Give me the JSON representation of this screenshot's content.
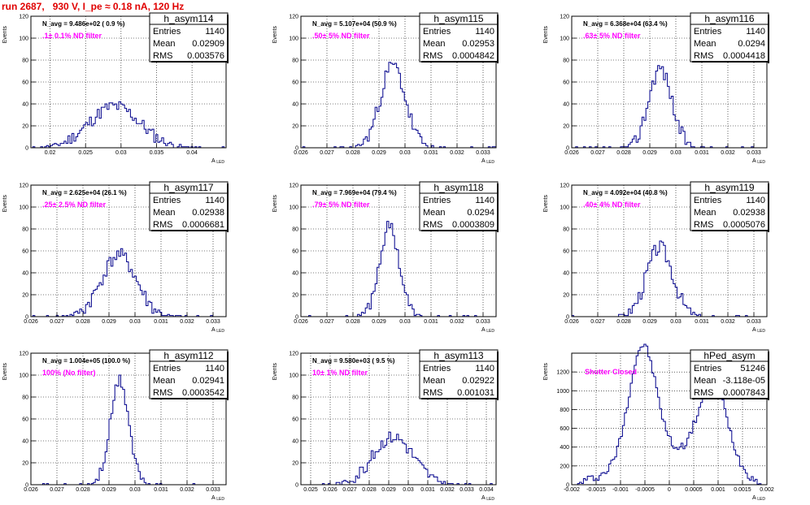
{
  "page_title": "run 2687,   930 V, I_pe ≈ 0.18 nA, 120 Hz",
  "axis_label_x": "A_LED",
  "axis_label_y": "Events",
  "stats_labels": {
    "entries": "Entries",
    "mean": "Mean",
    "rms": "RMS"
  },
  "colors": {
    "title": "#e00000",
    "histogram": "#00008b",
    "annotation": "#ff00ff"
  },
  "chart_data": [
    {
      "type": "histogram",
      "name": "h_asym114",
      "navg": "N_avg = 9.486e+02 ( 0.9 %)",
      "filter": ".1± 0.1% ND filter",
      "stats": {
        "entries": "1140",
        "mean": "0.02909",
        "rms": "0.003576"
      },
      "xlim": [
        0.0173,
        0.0448
      ],
      "ylim": [
        0,
        120
      ],
      "xticks": [
        0.02,
        0.025,
        0.03,
        0.035,
        0.04
      ],
      "xticklabels": [
        "0.02",
        "0.025",
        "0.03",
        "0.035",
        "0.04"
      ],
      "yticks": [
        0,
        20,
        40,
        60,
        80,
        100,
        120
      ],
      "yticklabels": [
        "0",
        "20",
        "40",
        "60",
        "80",
        "100",
        "120"
      ],
      "mean": 0.02909,
      "sigma": 0.003576,
      "peak": 38,
      "noise": 6,
      "bins": 100,
      "seed": 11
    },
    {
      "type": "histogram",
      "name": "h_asym115",
      "navg": "N_avg = 5.107e+04 (50.9 %)",
      "filter": ".50± 5% ND filter",
      "stats": {
        "entries": "1140",
        "mean": "0.02953",
        "rms": "0.0004842"
      },
      "xlim": [
        0.026,
        0.0335
      ],
      "ylim": [
        0,
        120
      ],
      "xticks": [
        0.026,
        0.027,
        0.028,
        0.029,
        0.03,
        0.031,
        0.032,
        0.033
      ],
      "xticklabels": [
        "0.026",
        "0.027",
        "0.028",
        "0.029",
        "0.03",
        "0.031",
        "0.032",
        "0.033"
      ],
      "yticks": [
        0,
        20,
        40,
        60,
        80,
        100,
        120
      ],
      "yticklabels": [
        "0",
        "20",
        "40",
        "60",
        "80",
        "100",
        "120"
      ],
      "mean": 0.02953,
      "sigma": 0.000484,
      "peak": 75,
      "noise": 7,
      "bins": 100,
      "seed": 23
    },
    {
      "type": "histogram",
      "name": "h_asym116",
      "navg": "N_avg = 6.368e+04 (63.4 %)",
      "filter": ".63± 5% ND filter",
      "stats": {
        "entries": "1140",
        "mean": "0.0294",
        "rms": "0.0004418"
      },
      "xlim": [
        0.026,
        0.0335
      ],
      "ylim": [
        0,
        120
      ],
      "xticks": [
        0.026,
        0.027,
        0.028,
        0.029,
        0.03,
        0.031,
        0.032,
        0.033
      ],
      "xticklabels": [
        "0.026",
        "0.027",
        "0.028",
        "0.029",
        "0.03",
        "0.031",
        "0.032",
        "0.033"
      ],
      "yticks": [
        0,
        20,
        40,
        60,
        80,
        100,
        120
      ],
      "yticklabels": [
        "0",
        "20",
        "40",
        "60",
        "80",
        "100",
        "120"
      ],
      "mean": 0.0294,
      "sigma": 0.000442,
      "peak": 73,
      "noise": 7,
      "bins": 100,
      "seed": 37
    },
    {
      "type": "histogram",
      "name": "h_asym117",
      "navg": "N_avg = 2.625e+04 (26.1 %)",
      "filter": ".25± 2.5% ND filter",
      "stats": {
        "entries": "1140",
        "mean": "0.02938",
        "rms": "0.0006681"
      },
      "xlim": [
        0.026,
        0.0335
      ],
      "ylim": [
        0,
        120
      ],
      "xticks": [
        0.026,
        0.027,
        0.028,
        0.029,
        0.03,
        0.031,
        0.032,
        0.033
      ],
      "xticklabels": [
        "0.026",
        "0.027",
        "0.028",
        "0.029",
        "0.03",
        "0.031",
        "0.032",
        "0.033"
      ],
      "yticks": [
        0,
        20,
        40,
        60,
        80,
        100,
        120
      ],
      "yticklabels": [
        "0",
        "20",
        "40",
        "60",
        "80",
        "100",
        "120"
      ],
      "mean": 0.02938,
      "sigma": 0.000668,
      "peak": 56,
      "noise": 7,
      "bins": 100,
      "seed": 41
    },
    {
      "type": "histogram",
      "name": "h_asym118",
      "navg": "N_avg = 7.969e+04 (79.4 %)",
      "filter": ".79± 5% ND filter",
      "stats": {
        "entries": "1140",
        "mean": "0.0294",
        "rms": "0.0003809"
      },
      "xlim": [
        0.026,
        0.0335
      ],
      "ylim": [
        0,
        120
      ],
      "xticks": [
        0.026,
        0.027,
        0.028,
        0.029,
        0.03,
        0.031,
        0.032,
        0.033
      ],
      "xticklabels": [
        "0.026",
        "0.027",
        "0.028",
        "0.029",
        "0.03",
        "0.031",
        "0.032",
        "0.033"
      ],
      "yticks": [
        0,
        20,
        40,
        60,
        80,
        100,
        120
      ],
      "yticklabels": [
        "0",
        "20",
        "40",
        "60",
        "80",
        "100",
        "120"
      ],
      "mean": 0.0294,
      "sigma": 0.000381,
      "peak": 82,
      "noise": 6,
      "bins": 100,
      "seed": 53
    },
    {
      "type": "histogram",
      "name": "h_asym119",
      "navg": "N_avg = 4.092e+04 (40.8 %)",
      "filter": ".40± 4% ND filter",
      "stats": {
        "entries": "1140",
        "mean": "0.02938",
        "rms": "0.0005076"
      },
      "xlim": [
        0.026,
        0.0335
      ],
      "ylim": [
        0,
        120
      ],
      "xticks": [
        0.026,
        0.027,
        0.028,
        0.029,
        0.03,
        0.031,
        0.032,
        0.033
      ],
      "xticklabels": [
        "0.026",
        "0.027",
        "0.028",
        "0.029",
        "0.03",
        "0.031",
        "0.032",
        "0.033"
      ],
      "yticks": [
        0,
        20,
        40,
        60,
        80,
        100,
        120
      ],
      "yticklabels": [
        "0",
        "20",
        "40",
        "60",
        "80",
        "100",
        "120"
      ],
      "mean": 0.02938,
      "sigma": 0.000508,
      "peak": 63,
      "noise": 7,
      "bins": 100,
      "seed": 67
    },
    {
      "type": "histogram",
      "name": "h_asym112",
      "navg": "N_avg = 1.004e+05 (100.0 %)",
      "filter": "100% (No filter)",
      "stats": {
        "entries": "1140",
        "mean": "0.02941",
        "rms": "0.0003542"
      },
      "xlim": [
        0.026,
        0.0335
      ],
      "ylim": [
        0,
        120
      ],
      "xticks": [
        0.026,
        0.027,
        0.028,
        0.029,
        0.03,
        0.031,
        0.032,
        0.033
      ],
      "xticklabels": [
        "0.026",
        "0.027",
        "0.028",
        "0.029",
        "0.03",
        "0.031",
        "0.032",
        "0.033"
      ],
      "yticks": [
        0,
        20,
        40,
        60,
        80,
        100,
        120
      ],
      "yticklabels": [
        "0",
        "20",
        "40",
        "60",
        "80",
        "100",
        "120"
      ],
      "mean": 0.02941,
      "sigma": 0.000354,
      "peak": 95,
      "noise": 6,
      "bins": 100,
      "seed": 71
    },
    {
      "type": "histogram",
      "name": "h_asym113",
      "navg": "N_avg = 9.580e+03 ( 9.5 %)",
      "filter": "10± 1% ND filter",
      "stats": {
        "entries": "1140",
        "mean": "0.02922",
        "rms": "0.001031"
      },
      "xlim": [
        0.0245,
        0.0345
      ],
      "ylim": [
        0,
        120
      ],
      "xticks": [
        0.025,
        0.026,
        0.027,
        0.028,
        0.029,
        0.03,
        0.031,
        0.032,
        0.033,
        0.034
      ],
      "xticklabels": [
        "0.025",
        "0.026",
        "0.027",
        "0.028",
        "0.029",
        "0.03",
        "0.031",
        "0.032",
        "0.033",
        "0.034"
      ],
      "yticks": [
        0,
        20,
        40,
        60,
        80,
        100,
        120
      ],
      "yticklabels": [
        "0",
        "20",
        "40",
        "60",
        "80",
        "100",
        "120"
      ],
      "mean": 0.02922,
      "sigma": 0.00103,
      "peak": 44,
      "noise": 6,
      "bins": 100,
      "seed": 83
    },
    {
      "type": "histogram",
      "name": "hPed_asym",
      "navg": "",
      "filter": "Shutter Closed",
      "stats": {
        "entries": "51246",
        "mean": "-3.118e-05",
        "rms": "0.0007843"
      },
      "xlim": [
        -0.002,
        0.002
      ],
      "ylim": [
        0,
        1400
      ],
      "xticks": [
        -0.002,
        -0.0015,
        -0.001,
        -0.0005,
        0,
        0.0005,
        0.001,
        0.0015,
        0.002
      ],
      "xticklabels": [
        "-0.002",
        "-0.0015",
        "-0.001",
        "-0.0005",
        "0",
        "0.0005",
        "0.001",
        "0.0015",
        "0.002"
      ],
      "yticks": [
        0,
        200,
        400,
        600,
        800,
        1000,
        1200
      ],
      "yticklabels": [
        "0",
        "200",
        "400",
        "600",
        "800",
        "1000",
        "1200"
      ],
      "bimodal": true,
      "bins": 100,
      "seed": 97
    }
  ]
}
